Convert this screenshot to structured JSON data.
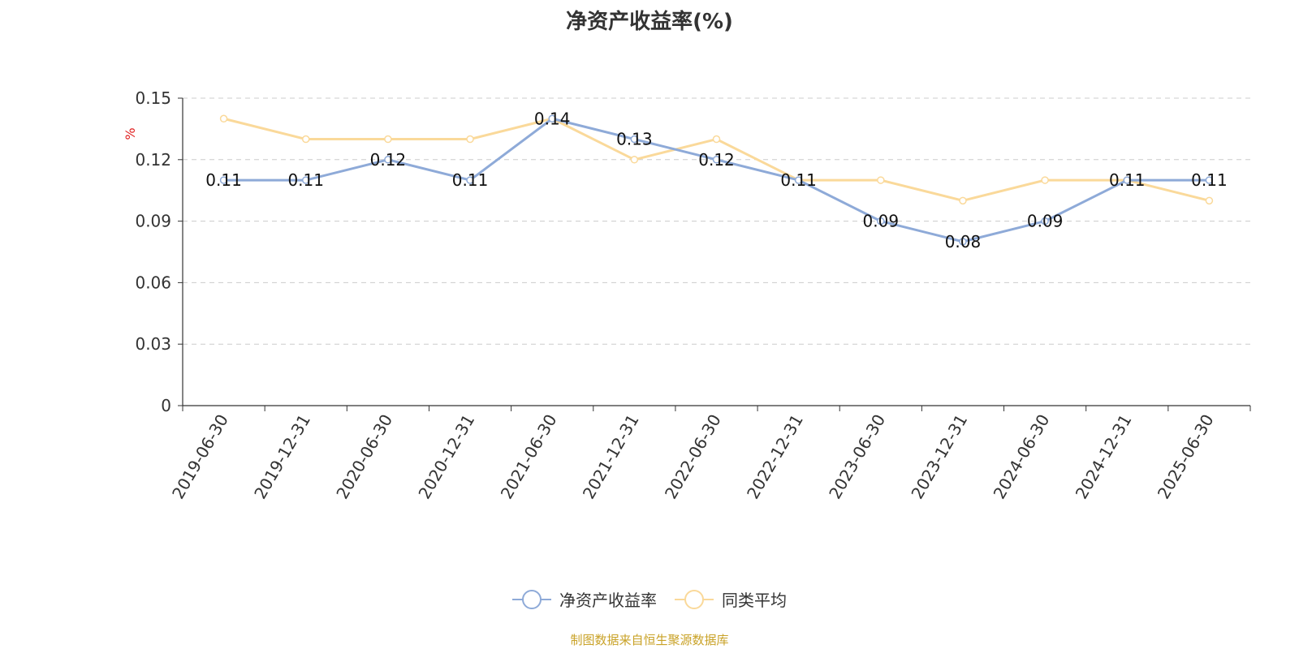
{
  "title": "净资产收益率(%)",
  "source_note": "制图数据来自恒生聚源数据库",
  "colors": {
    "series_0": "#8eaad8",
    "series_1": "#fad99a",
    "unit": "#e02020",
    "axis": "#333333",
    "grid": "#cccccc"
  },
  "chart_data": {
    "type": "line",
    "x": [
      "2019-06-30",
      "2019-12-31",
      "2020-06-30",
      "2020-12-31",
      "2021-06-30",
      "2021-12-31",
      "2022-06-30",
      "2022-12-31",
      "2023-06-30",
      "2023-12-31",
      "2024-06-30",
      "2024-12-31",
      "2025-06-30"
    ],
    "series": [
      {
        "name": "净资产收益率",
        "values": [
          0.11,
          0.11,
          0.12,
          0.11,
          0.14,
          0.13,
          0.12,
          0.11,
          0.09,
          0.08,
          0.09,
          0.11,
          0.11
        ],
        "data_labels": true
      },
      {
        "name": "同类平均",
        "values": [
          0.14,
          0.13,
          0.13,
          0.13,
          0.14,
          0.12,
          0.13,
          0.11,
          0.11,
          0.1,
          0.11,
          0.11,
          0.1
        ],
        "data_labels": false
      }
    ],
    "ylabel": "%",
    "ylim": [
      0,
      0.15
    ],
    "yticks": [
      "0",
      "0.03",
      "0.06",
      "0.09",
      "0.12",
      "0.15"
    ],
    "grid": true,
    "legend_position": "bottom"
  }
}
